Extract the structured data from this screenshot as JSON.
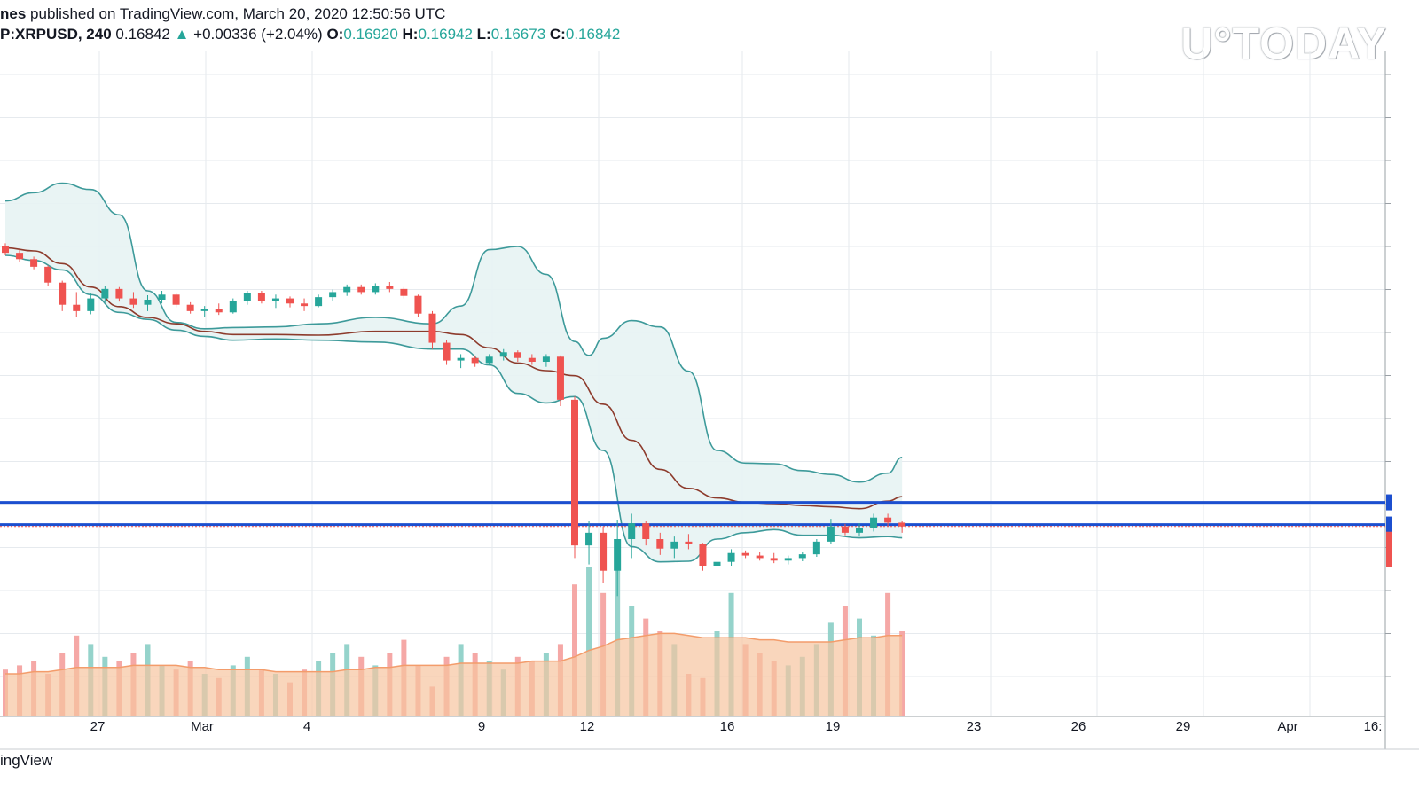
{
  "header": {
    "author_fragment": "nes",
    "published_text": "published on TradingView.com, March 20, 2020 12:50:56 UTC",
    "symbol_fragment": "P:XRPUSD, 240",
    "last_price": "0.16842",
    "up_arrow": "▲",
    "change": "+0.00336 (+2.04%)",
    "o_label": "O:",
    "o_value": "0.16920",
    "h_label": "H:",
    "h_value": "0.16942",
    "l_label": "L:",
    "l_value": "0.16673",
    "c_label": "C:",
    "c_value": "0.16842"
  },
  "watermark": "U°TODAY",
  "footer": {
    "brand_fragment": "ingView"
  },
  "colors": {
    "up": "#26a69a",
    "down": "#ef5350",
    "band": "#3d9a9a",
    "basis": "#8d3b2c",
    "band_fill": "#e7f3f3",
    "level": "#1c4fcf",
    "volume_ma_fill": "#f7c4a0",
    "volume_ma_line": "#f39c6b",
    "grid": "#e6eaee"
  },
  "chart_data": {
    "type": "candlestick",
    "title": "XRPUSD, 240",
    "x_tick_labels": [
      "27",
      "Mar",
      "4",
      "9",
      "12",
      "16",
      "19",
      "23",
      "26",
      "29",
      "Apr",
      "16:"
    ],
    "y_range_approx": [
      0.14,
      0.245
    ],
    "bollinger_bands": {
      "upper_approx": [
        [
          0,
          0.2214
        ],
        [
          2,
          0.2227
        ],
        [
          4,
          0.2242
        ],
        [
          6,
          0.2232
        ],
        [
          8,
          0.2192
        ],
        [
          10,
          0.2072
        ],
        [
          12,
          0.2022
        ],
        [
          14,
          0.2012
        ],
        [
          16,
          0.2014
        ],
        [
          19,
          0.2015
        ],
        [
          22,
          0.202
        ],
        [
          26,
          0.203
        ],
        [
          30,
          0.202
        ],
        [
          32,
          0.2048
        ],
        [
          34,
          0.2137
        ],
        [
          36,
          0.2142
        ],
        [
          38,
          0.2098
        ],
        [
          40,
          0.1992
        ],
        [
          41,
          0.197
        ],
        [
          42,
          0.1997
        ],
        [
          44,
          0.2025
        ],
        [
          46,
          0.2015
        ],
        [
          48,
          0.1945
        ],
        [
          50,
          0.182
        ],
        [
          52,
          0.18
        ],
        [
          54,
          0.1799
        ],
        [
          56,
          0.1788
        ],
        [
          58,
          0.1782
        ],
        [
          60,
          0.177
        ],
        [
          62,
          0.1784
        ],
        [
          63,
          0.1809
        ]
      ],
      "lower_approx": [
        [
          0,
          0.2128
        ],
        [
          2,
          0.212
        ],
        [
          4,
          0.2105
        ],
        [
          6,
          0.2066
        ],
        [
          8,
          0.2038
        ],
        [
          10,
          0.2027
        ],
        [
          12,
          0.201
        ],
        [
          14,
          0.2
        ],
        [
          16,
          0.1994
        ],
        [
          19,
          0.1996
        ],
        [
          22,
          0.1994
        ],
        [
          26,
          0.1991
        ],
        [
          30,
          0.198
        ],
        [
          32,
          0.198
        ],
        [
          34,
          0.1955
        ],
        [
          36,
          0.191
        ],
        [
          38,
          0.1895
        ],
        [
          40,
          0.1905
        ],
        [
          42,
          0.182
        ],
        [
          44,
          0.1668
        ],
        [
          46,
          0.1644
        ],
        [
          48,
          0.1645
        ],
        [
          50,
          0.168
        ],
        [
          52,
          0.169
        ],
        [
          54,
          0.1695
        ],
        [
          56,
          0.1686
        ],
        [
          58,
          0.1686
        ],
        [
          60,
          0.1682
        ],
        [
          62,
          0.1684
        ],
        [
          63,
          0.1682
        ]
      ],
      "basis_approx": [
        [
          0,
          0.214
        ],
        [
          2,
          0.2135
        ],
        [
          4,
          0.2115
        ],
        [
          6,
          0.2078
        ],
        [
          8,
          0.2047
        ],
        [
          10,
          0.203
        ],
        [
          12,
          0.202
        ],
        [
          14,
          0.2008
        ],
        [
          16,
          0.2003
        ],
        [
          19,
          0.2003
        ],
        [
          22,
          0.2002
        ],
        [
          26,
          0.2008
        ],
        [
          30,
          0.2008
        ],
        [
          32,
          0.2003
        ],
        [
          34,
          0.1982
        ],
        [
          36,
          0.1958
        ],
        [
          38,
          0.1946
        ],
        [
          40,
          0.1938
        ],
        [
          42,
          0.1893
        ],
        [
          44,
          0.1836
        ],
        [
          46,
          0.179
        ],
        [
          48,
          0.176
        ],
        [
          50,
          0.1745
        ],
        [
          52,
          0.1738
        ],
        [
          54,
          0.1736
        ],
        [
          56,
          0.1733
        ],
        [
          58,
          0.1731
        ],
        [
          60,
          0.1728
        ],
        [
          62,
          0.174
        ],
        [
          63,
          0.1747
        ]
      ]
    },
    "horizontal_levels_approx": [
      0.1738,
      0.1703
    ],
    "candles_approx": [
      [
        0.2142,
        0.2147,
        0.2128,
        0.2132
      ],
      [
        0.2132,
        0.2137,
        0.2118,
        0.2122
      ],
      [
        0.2122,
        0.2126,
        0.2106,
        0.211
      ],
      [
        0.211,
        0.2112,
        0.208,
        0.2085
      ],
      [
        0.2085,
        0.2088,
        0.204,
        0.205
      ],
      [
        0.205,
        0.207,
        0.203,
        0.204
      ],
      [
        0.204,
        0.2068,
        0.2035,
        0.206
      ],
      [
        0.206,
        0.208,
        0.2054,
        0.2075
      ],
      [
        0.2075,
        0.2078,
        0.2055,
        0.206
      ],
      [
        0.206,
        0.207,
        0.2045,
        0.205
      ],
      [
        0.205,
        0.2065,
        0.204,
        0.2058
      ],
      [
        0.2058,
        0.2072,
        0.2052,
        0.2066
      ],
      [
        0.2066,
        0.2069,
        0.2046,
        0.205
      ],
      [
        0.205,
        0.2054,
        0.2036,
        0.204
      ],
      [
        0.204,
        0.2048,
        0.203,
        0.2044
      ],
      [
        0.2044,
        0.2052,
        0.2034,
        0.2038
      ],
      [
        0.2038,
        0.206,
        0.2036,
        0.2056
      ],
      [
        0.2056,
        0.2072,
        0.205,
        0.2068
      ],
      [
        0.2068,
        0.2072,
        0.2052,
        0.2056
      ],
      [
        0.2056,
        0.2066,
        0.2045,
        0.206
      ],
      [
        0.206,
        0.2063,
        0.2046,
        0.2052
      ],
      [
        0.2052,
        0.206,
        0.204,
        0.2048
      ],
      [
        0.2048,
        0.2066,
        0.2046,
        0.2062
      ],
      [
        0.2062,
        0.2074,
        0.2056,
        0.207
      ],
      [
        0.207,
        0.2082,
        0.2064,
        0.2078
      ],
      [
        0.2078,
        0.2082,
        0.2066,
        0.207
      ],
      [
        0.207,
        0.2084,
        0.2066,
        0.208
      ],
      [
        0.208,
        0.2086,
        0.207,
        0.2075
      ],
      [
        0.2075,
        0.2078,
        0.206,
        0.2064
      ],
      [
        0.2064,
        0.2066,
        0.203,
        0.2036
      ],
      [
        0.2036,
        0.204,
        0.198,
        0.199
      ],
      [
        0.199,
        0.1994,
        0.1955,
        0.1962
      ],
      [
        0.1962,
        0.1972,
        0.195,
        0.1966
      ],
      [
        0.1966,
        0.197,
        0.1952,
        0.1958
      ],
      [
        0.1958,
        0.1972,
        0.1954,
        0.1968
      ],
      [
        0.1968,
        0.198,
        0.1962,
        0.1975
      ],
      [
        0.1975,
        0.1978,
        0.196,
        0.1966
      ],
      [
        0.1966,
        0.1972,
        0.1955,
        0.196
      ],
      [
        0.196,
        0.1972,
        0.1952,
        0.1968
      ],
      [
        0.1968,
        0.197,
        0.189,
        0.19
      ],
      [
        0.19,
        0.1905,
        0.165,
        0.167
      ],
      [
        0.167,
        0.1708,
        0.164,
        0.169
      ],
      [
        0.169,
        0.17,
        0.161,
        0.163
      ],
      [
        0.163,
        0.171,
        0.159,
        0.168
      ],
      [
        0.168,
        0.172,
        0.165,
        0.1705
      ],
      [
        0.1705,
        0.1708,
        0.167,
        0.168
      ],
      [
        0.168,
        0.169,
        0.1655,
        0.1665
      ],
      [
        0.1665,
        0.1684,
        0.165,
        0.1676
      ],
      [
        0.1676,
        0.1688,
        0.1664,
        0.1672
      ],
      [
        0.1672,
        0.1674,
        0.163,
        0.1638
      ],
      [
        0.1638,
        0.165,
        0.1616,
        0.1644
      ],
      [
        0.1644,
        0.1664,
        0.1638,
        0.1658
      ],
      [
        0.1658,
        0.1662,
        0.165,
        0.1654
      ],
      [
        0.1654,
        0.166,
        0.1646,
        0.165
      ],
      [
        0.165,
        0.1658,
        0.1642,
        0.1646
      ],
      [
        0.1646,
        0.1654,
        0.164,
        0.165
      ],
      [
        0.165,
        0.166,
        0.1645,
        0.1656
      ],
      [
        0.1656,
        0.168,
        0.1652,
        0.1676
      ],
      [
        0.1676,
        0.1712,
        0.1672,
        0.17
      ],
      [
        0.17,
        0.1704,
        0.1686,
        0.169
      ],
      [
        0.169,
        0.1705,
        0.1684,
        0.1698
      ],
      [
        0.1698,
        0.172,
        0.1692,
        0.1714
      ],
      [
        0.1714,
        0.172,
        0.17,
        0.1706
      ],
      [
        0.1706,
        0.1708,
        0.169,
        0.17
      ]
    ],
    "volume_approx": [
      22,
      24,
      26,
      20,
      30,
      38,
      34,
      28,
      26,
      30,
      34,
      24,
      22,
      26,
      20,
      18,
      24,
      28,
      22,
      20,
      16,
      22,
      26,
      30,
      34,
      28,
      24,
      30,
      36,
      24,
      14,
      28,
      34,
      30,
      26,
      22,
      28,
      26,
      30,
      34,
      62,
      70,
      58,
      76,
      52,
      46,
      40,
      34,
      20,
      18,
      40,
      58,
      34,
      30,
      26,
      24,
      28,
      34,
      44,
      52,
      46,
      38,
      58,
      40
    ],
    "volume_ma_approx": [
      20,
      20,
      21,
      21,
      22,
      23,
      23,
      23,
      23,
      24,
      24,
      24,
      24,
      23,
      23,
      22,
      22,
      22,
      22,
      21,
      21,
      21,
      21,
      21,
      22,
      22,
      23,
      23,
      24,
      24,
      24,
      24,
      25,
      25,
      25,
      25,
      25,
      26,
      26,
      26,
      28,
      31,
      33,
      36,
      37,
      38,
      39,
      39,
      38,
      37,
      37,
      37,
      37,
      36,
      36,
      35,
      35,
      35,
      35,
      36,
      37,
      37,
      38,
      38
    ]
  }
}
